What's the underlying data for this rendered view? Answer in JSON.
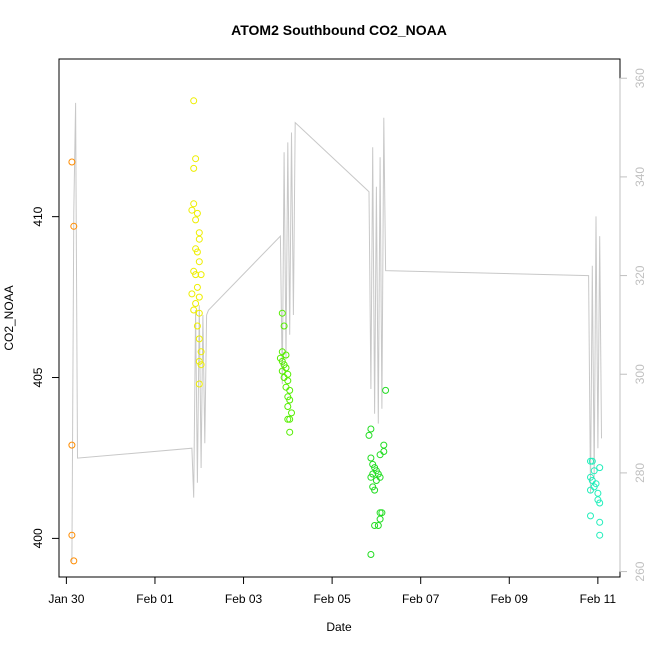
{
  "chart_data": {
    "type": "scatter",
    "title": "ATOM2 Southbound CO2_NOAA",
    "xlabel": "Date",
    "ylabel": "CO2_NOAA",
    "x_axis": {
      "type": "date",
      "range": [
        "2017-01-29T20:00",
        "2017-02-11T12:00"
      ],
      "ticks": [
        {
          "label": "Jan 30",
          "date": "2017-01-30"
        },
        {
          "label": "Feb 01",
          "date": "2017-02-01"
        },
        {
          "label": "Feb 03",
          "date": "2017-02-03"
        },
        {
          "label": "Feb 05",
          "date": "2017-02-05"
        },
        {
          "label": "Feb 07",
          "date": "2017-02-07"
        },
        {
          "label": "Feb 09",
          "date": "2017-02-09"
        },
        {
          "label": "Feb 11",
          "date": "2017-02-11"
        }
      ]
    },
    "y_axis_left": {
      "range": [
        398.8,
        414.9
      ],
      "ticks": [
        400,
        405,
        410
      ]
    },
    "y_axis_right": {
      "range": [
        258.9,
        363.9
      ],
      "ticks": [
        260,
        280,
        300,
        320,
        340,
        360
      ],
      "color": "#c0c0c0"
    },
    "series": [
      {
        "color": "#ff8c00",
        "points": [
          {
            "x": "2017-01-30T03:00",
            "y": 411.7
          },
          {
            "x": "2017-01-30T04:00",
            "y": 409.7
          },
          {
            "x": "2017-01-30T03:00",
            "y": 402.9
          },
          {
            "x": "2017-01-30T03:00",
            "y": 400.1
          },
          {
            "x": "2017-01-30T04:00",
            "y": 399.3
          }
        ]
      },
      {
        "color": "#eeee00",
        "points": [
          {
            "x": "2017-02-01T21:00",
            "y": 413.6
          },
          {
            "x": "2017-02-01T22:00",
            "y": 411.8
          },
          {
            "x": "2017-02-01T21:00",
            "y": 411.5
          },
          {
            "x": "2017-02-01T21:00",
            "y": 410.4
          },
          {
            "x": "2017-02-01T20:00",
            "y": 410.2
          },
          {
            "x": "2017-02-01T23:00",
            "y": 410.1
          },
          {
            "x": "2017-02-01T22:00",
            "y": 409.9
          },
          {
            "x": "2017-02-02T00:00",
            "y": 409.5
          },
          {
            "x": "2017-02-02T00:00",
            "y": 409.3
          },
          {
            "x": "2017-02-01T22:00",
            "y": 409.0
          },
          {
            "x": "2017-02-01T23:00",
            "y": 408.9
          },
          {
            "x": "2017-02-02T00:00",
            "y": 408.6
          },
          {
            "x": "2017-02-01T21:00",
            "y": 408.3
          },
          {
            "x": "2017-02-01T22:00",
            "y": 408.2
          },
          {
            "x": "2017-02-02T01:00",
            "y": 408.2
          },
          {
            "x": "2017-02-01T23:00",
            "y": 407.8
          },
          {
            "x": "2017-02-01T20:00",
            "y": 407.6
          },
          {
            "x": "2017-02-02T00:00",
            "y": 407.5
          },
          {
            "x": "2017-02-01T22:00",
            "y": 407.3
          },
          {
            "x": "2017-02-01T21:00",
            "y": 407.1
          },
          {
            "x": "2017-02-02T00:00",
            "y": 407.0
          },
          {
            "x": "2017-02-01T23:00",
            "y": 406.6
          },
          {
            "x": "2017-02-02T00:00",
            "y": 406.2
          },
          {
            "x": "2017-02-02T01:00",
            "y": 405.8
          },
          {
            "x": "2017-02-02T00:00",
            "y": 405.5
          },
          {
            "x": "2017-02-02T01:00",
            "y": 405.4
          },
          {
            "x": "2017-02-02T00:00",
            "y": 404.8
          }
        ]
      },
      {
        "color": "#55ee00",
        "points": [
          {
            "x": "2017-02-03T21:00",
            "y": 407.0
          },
          {
            "x": "2017-02-03T22:00",
            "y": 406.6
          },
          {
            "x": "2017-02-03T21:00",
            "y": 405.8
          },
          {
            "x": "2017-02-03T23:00",
            "y": 405.7
          },
          {
            "x": "2017-02-03T20:00",
            "y": 405.6
          },
          {
            "x": "2017-02-03T21:00",
            "y": 405.5
          },
          {
            "x": "2017-02-03T22:00",
            "y": 405.4
          },
          {
            "x": "2017-02-03T23:00",
            "y": 405.3
          },
          {
            "x": "2017-02-03T21:00",
            "y": 405.2
          },
          {
            "x": "2017-02-04T00:00",
            "y": 405.1
          },
          {
            "x": "2017-02-03T22:00",
            "y": 405.0
          },
          {
            "x": "2017-02-04T00:00",
            "y": 404.9
          },
          {
            "x": "2017-02-03T23:00",
            "y": 404.7
          },
          {
            "x": "2017-02-04T01:00",
            "y": 404.6
          },
          {
            "x": "2017-02-04T00:00",
            "y": 404.4
          },
          {
            "x": "2017-02-04T01:00",
            "y": 404.3
          },
          {
            "x": "2017-02-04T00:00",
            "y": 404.1
          },
          {
            "x": "2017-02-04T02:00",
            "y": 403.9
          },
          {
            "x": "2017-02-04T01:00",
            "y": 403.7
          },
          {
            "x": "2017-02-04T00:00",
            "y": 403.7
          },
          {
            "x": "2017-02-04T01:00",
            "y": 403.3
          }
        ]
      },
      {
        "color": "#22dd22",
        "points": [
          {
            "x": "2017-02-06T05:00",
            "y": 404.6
          },
          {
            "x": "2017-02-05T21:00",
            "y": 403.4
          },
          {
            "x": "2017-02-05T20:00",
            "y": 403.2
          },
          {
            "x": "2017-02-06T04:00",
            "y": 402.9
          },
          {
            "x": "2017-02-06T04:00",
            "y": 402.7
          },
          {
            "x": "2017-02-06T02:00",
            "y": 402.6
          },
          {
            "x": "2017-02-05T21:00",
            "y": 402.5
          },
          {
            "x": "2017-02-05T22:00",
            "y": 402.3
          },
          {
            "x": "2017-02-05T23:00",
            "y": 402.2
          },
          {
            "x": "2017-02-06T00:00",
            "y": 402.1
          },
          {
            "x": "2017-02-05T22:00",
            "y": 402.0
          },
          {
            "x": "2017-02-06T01:00",
            "y": 402.0
          },
          {
            "x": "2017-02-05T21:00",
            "y": 401.9
          },
          {
            "x": "2017-02-06T02:00",
            "y": 401.9
          },
          {
            "x": "2017-02-06T00:00",
            "y": 401.8
          },
          {
            "x": "2017-02-05T22:00",
            "y": 401.6
          },
          {
            "x": "2017-02-05T23:00",
            "y": 401.5
          },
          {
            "x": "2017-02-06T02:00",
            "y": 400.8
          },
          {
            "x": "2017-02-06T03:00",
            "y": 400.8
          },
          {
            "x": "2017-02-06T02:00",
            "y": 400.6
          },
          {
            "x": "2017-02-06T01:00",
            "y": 400.4
          },
          {
            "x": "2017-02-05T23:00",
            "y": 400.4
          },
          {
            "x": "2017-02-05T21:00",
            "y": 399.5
          }
        ]
      },
      {
        "color": "#22eebb",
        "points": [
          {
            "x": "2017-02-10T20:00",
            "y": 402.4
          },
          {
            "x": "2017-02-10T21:00",
            "y": 402.4
          },
          {
            "x": "2017-02-11T01:00",
            "y": 402.2
          },
          {
            "x": "2017-02-10T22:00",
            "y": 402.1
          },
          {
            "x": "2017-02-10T20:00",
            "y": 401.9
          },
          {
            "x": "2017-02-10T21:00",
            "y": 401.8
          },
          {
            "x": "2017-02-10T23:00",
            "y": 401.7
          },
          {
            "x": "2017-02-10T22:00",
            "y": 401.6
          },
          {
            "x": "2017-02-10T20:00",
            "y": 401.5
          },
          {
            "x": "2017-02-11T00:00",
            "y": 401.4
          },
          {
            "x": "2017-02-11T00:00",
            "y": 401.2
          },
          {
            "x": "2017-02-11T01:00",
            "y": 401.1
          },
          {
            "x": "2017-02-10T20:00",
            "y": 400.7
          },
          {
            "x": "2017-02-11T01:00",
            "y": 400.5
          },
          {
            "x": "2017-02-11T01:00",
            "y": 400.1
          }
        ]
      }
    ],
    "secondary_line": {
      "color": "#c8c8c8",
      "axis": "right",
      "points": [
        {
          "x": "2017-01-30T03:00",
          "y": 262
        },
        {
          "x": "2017-01-30T04:00",
          "y": 333
        },
        {
          "x": "2017-01-30T05:00",
          "y": 355
        },
        {
          "x": "2017-01-30T06:00",
          "y": 283
        },
        {
          "x": "2017-02-01T20:00",
          "y": 285
        },
        {
          "x": "2017-02-01T21:00",
          "y": 275
        },
        {
          "x": "2017-02-01T22:00",
          "y": 313
        },
        {
          "x": "2017-02-01T23:00",
          "y": 278
        },
        {
          "x": "2017-02-02T00:00",
          "y": 314
        },
        {
          "x": "2017-02-02T01:00",
          "y": 281
        },
        {
          "x": "2017-02-02T02:00",
          "y": 312
        },
        {
          "x": "2017-02-02T03:00",
          "y": 286
        },
        {
          "x": "2017-02-02T04:00",
          "y": 312
        },
        {
          "x": "2017-02-02T05:00",
          "y": 313
        },
        {
          "x": "2017-02-03T20:00",
          "y": 328
        },
        {
          "x": "2017-02-03T21:00",
          "y": 298
        },
        {
          "x": "2017-02-03T22:00",
          "y": 345
        },
        {
          "x": "2017-02-03T23:00",
          "y": 303
        },
        {
          "x": "2017-02-04T00:00",
          "y": 347
        },
        {
          "x": "2017-02-04T01:00",
          "y": 308
        },
        {
          "x": "2017-02-04T02:00",
          "y": 349
        },
        {
          "x": "2017-02-04T03:00",
          "y": 312
        },
        {
          "x": "2017-02-04T04:00",
          "y": 351
        },
        {
          "x": "2017-02-05T20:00",
          "y": 337
        },
        {
          "x": "2017-02-05T21:00",
          "y": 297
        },
        {
          "x": "2017-02-05T22:00",
          "y": 346
        },
        {
          "x": "2017-02-05T23:00",
          "y": 292
        },
        {
          "x": "2017-02-06T00:00",
          "y": 338
        },
        {
          "x": "2017-02-06T01:00",
          "y": 290
        },
        {
          "x": "2017-02-06T02:00",
          "y": 344
        },
        {
          "x": "2017-02-06T03:00",
          "y": 293
        },
        {
          "x": "2017-02-06T04:00",
          "y": 352
        },
        {
          "x": "2017-02-06T05:00",
          "y": 321
        },
        {
          "x": "2017-02-10T19:00",
          "y": 320
        },
        {
          "x": "2017-02-10T20:00",
          "y": 276
        },
        {
          "x": "2017-02-10T21:00",
          "y": 322
        },
        {
          "x": "2017-02-10T22:00",
          "y": 279
        },
        {
          "x": "2017-02-10T23:00",
          "y": 332
        },
        {
          "x": "2017-02-11T00:00",
          "y": 285
        },
        {
          "x": "2017-02-11T01:00",
          "y": 328
        },
        {
          "x": "2017-02-11T02:00",
          "y": 287
        }
      ]
    },
    "grid": false,
    "legend": "none"
  }
}
